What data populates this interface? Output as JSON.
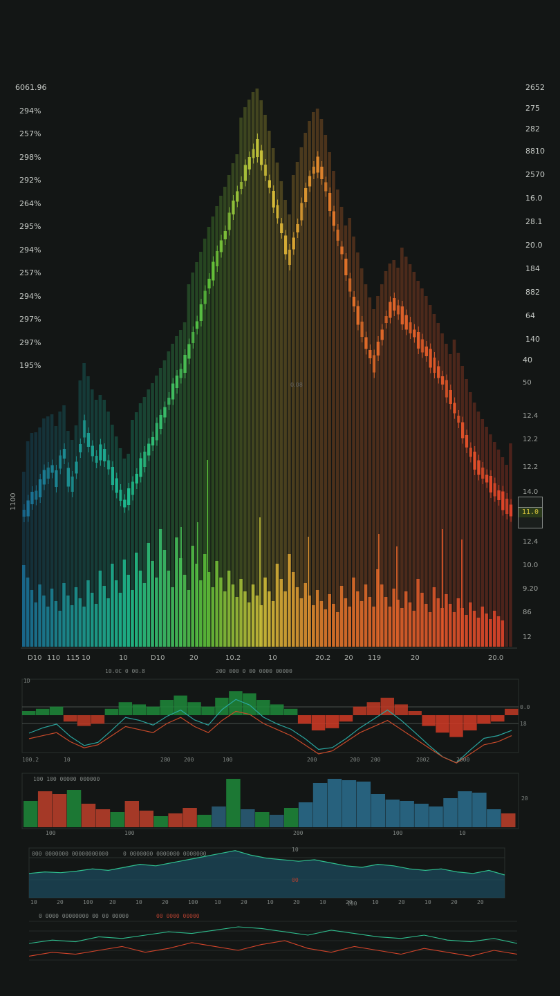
{
  "colors": {
    "background": "#131615",
    "blue": "#1a6f98",
    "teal": "#1fbf8f",
    "green": "#5ec23a",
    "yellow": "#d6c23a",
    "orange": "#e3762a",
    "red": "#e2452a",
    "grid": "#2a302d"
  },
  "main_chart": {
    "left_axis_labels": [
      "6061.96",
      "294%",
      "257%",
      "298%",
      "292%",
      "264%",
      "295%",
      "294%",
      "257%",
      "294%",
      "297%",
      "297%",
      "195%"
    ],
    "right_axis_labels": [
      "2652",
      "275",
      "282",
      "8810",
      "2570",
      "16.0",
      "28.1",
      "20.0",
      "184",
      "882",
      "64",
      "140",
      "40",
      "50",
      "12.4",
      "12.2",
      "12.2",
      "14.0",
      "12.2",
      "12.4",
      "10.0",
      "9.20",
      "86",
      "12"
    ],
    "price_tag": "11.0",
    "side_label": "1100",
    "center_note": "0.08",
    "x_labels": [
      "D10",
      "110",
      "115",
      "10",
      "10",
      "D10",
      "20",
      "10.2",
      "10",
      "20.2",
      "20",
      "119",
      "20",
      "20.0"
    ]
  },
  "chart_data": [
    {
      "type": "bar",
      "title": "",
      "description_series": "candlestick price series with volume histogram",
      "series": [
        {
          "name": "",
          "values": [
            742,
            735,
            720,
            716,
            706,
            690,
            684,
            678,
            692,
            668,
            656,
            690,
            700,
            676,
            648,
            620,
            636,
            652,
            664,
            654,
            658,
            672,
            688,
            702,
            716,
            728,
            718,
            706,
            692,
            676,
            664,
            650,
            638,
            624,
            610,
            596,
            580,
            566,
            552,
            540,
            526,
            508,
            488,
            470,
            452,
            430,
            410,
            392,
            374,
            356,
            340,
            320,
            300,
            284,
            268,
            250,
            236,
            222,
            214,
            228,
            246,
            266,
            288,
            306,
            330,
            354,
            372,
            352,
            330,
            306,
            282,
            262,
            246,
            238,
            250,
            270,
            292,
            316,
            340,
            362,
            386,
            412,
            436,
            456,
            476,
            496,
            512,
            526,
            504,
            484,
            462,
            448,
            440,
            448,
            456,
            466,
            474,
            482,
            492,
            500,
            508,
            518,
            528,
            538,
            550,
            562,
            574,
            590,
            606,
            622,
            638,
            654,
            666,
            676,
            684,
            692,
            700,
            708,
            716,
            724,
            732,
            738
          ]
        },
        {
          "name": "",
          "values": [
            118,
            100,
            82,
            64,
            90,
            74,
            58,
            84,
            66,
            52,
            92,
            74,
            60,
            86,
            70,
            58,
            96,
            78,
            62,
            110,
            88,
            70,
            120,
            96,
            78,
            126,
            104,
            82,
            136,
            110,
            92,
            150,
            124,
            100,
            170,
            140,
            110,
            86,
            158,
            128,
            104,
            82,
            146,
            120,
            96,
            134,
            108,
            86,
            124,
            100,
            80,
            110,
            90,
            72,
            98,
            80,
            64,
            90,
            74,
            60,
            100,
            80,
            66,
            120,
            98,
            80,
            134,
            108,
            86,
            70,
            92,
            74,
            60,
            82,
            66,
            54,
            76,
            62,
            50,
            88,
            70,
            58,
            100,
            80,
            66,
            90,
            72,
            58,
            112,
            90,
            72,
            58,
            84,
            68,
            56,
            80,
            64,
            52,
            98,
            78,
            62,
            50,
            86,
            70,
            56,
            76,
            62,
            50,
            70,
            56,
            46,
            64,
            52,
            42,
            58,
            48,
            40,
            52,
            44,
            38
          ]
        }
      ]
    },
    {
      "type": "area",
      "title": "",
      "series": [
        {
          "name": "",
          "values": [
            0,
            2,
            4,
            -2,
            -6,
            -4,
            2,
            8,
            6,
            4,
            10,
            14,
            8,
            4,
            12,
            18,
            16,
            10,
            6,
            2,
            -4,
            -10,
            -8,
            -2,
            4,
            8,
            12,
            6,
            0,
            -6,
            -12,
            -16,
            -10,
            -4,
            -2,
            2
          ]
        }
      ]
    },
    {
      "type": "bar",
      "title": "",
      "series": [
        {
          "name": "",
          "values": [
            38,
            52,
            48,
            54,
            34,
            26,
            22,
            38,
            24,
            16,
            20,
            28,
            18,
            30,
            70,
            26,
            22,
            18,
            28,
            36,
            64,
            70,
            68,
            66,
            48,
            40,
            38,
            34,
            30,
            42,
            52,
            50,
            26,
            20
          ]
        }
      ]
    },
    {
      "type": "line",
      "title": "",
      "series": [
        {
          "name": "",
          "values": [
            12,
            14,
            13,
            15,
            18,
            16,
            20,
            24,
            22,
            26,
            30,
            34,
            38,
            42,
            36,
            32,
            30,
            28,
            30,
            26,
            22,
            20,
            24,
            22,
            18,
            16,
            18,
            14,
            12,
            16,
            10
          ]
        }
      ]
    },
    {
      "type": "line",
      "title": "",
      "series": [
        {
          "name": "",
          "values": [
            10,
            14,
            12,
            18,
            16,
            20,
            24,
            22,
            26,
            30,
            28,
            24,
            20,
            26,
            22,
            18,
            16,
            20,
            14,
            12,
            16,
            10
          ]
        },
        {
          "name": "",
          "values": [
            4,
            8,
            6,
            10,
            14,
            8,
            12,
            18,
            14,
            10,
            16,
            20,
            12,
            8,
            14,
            10,
            6,
            12,
            8,
            4,
            10,
            6
          ]
        }
      ]
    }
  ],
  "panels": {
    "p1": {
      "left_tick": "1D",
      "caption": "10.0C 0 00.8",
      "caption2": "200 000 0 00 0000 00000",
      "right_ticks": [
        "0.0",
        "18"
      ],
      "x_labels": [
        "100.2",
        "10",
        "280",
        "200",
        "100",
        "200",
        "200",
        "200",
        "2002",
        "2000"
      ]
    },
    "p2": {
      "caption": "100  100 00000 000000",
      "right_tick": "20",
      "x_labels": [
        "100",
        "100",
        "200",
        "100",
        "10"
      ]
    },
    "p3": {
      "caption": "000  0000000  00000000000",
      "caption2": "0 0000000 0000000 0000000",
      "center_tag": "10",
      "red_tag": "00",
      "x_labels": [
        "10",
        "20",
        "100",
        "20",
        "10",
        "20",
        "100",
        "10",
        "20",
        "10",
        "20",
        "10",
        "20",
        "10",
        "20",
        "10",
        "20",
        "20"
      ],
      "axis_label": "100"
    },
    "p4": {
      "caption": "0 0000 00000000 00 00 00000",
      "red_caption": "00 0000 00000"
    }
  }
}
